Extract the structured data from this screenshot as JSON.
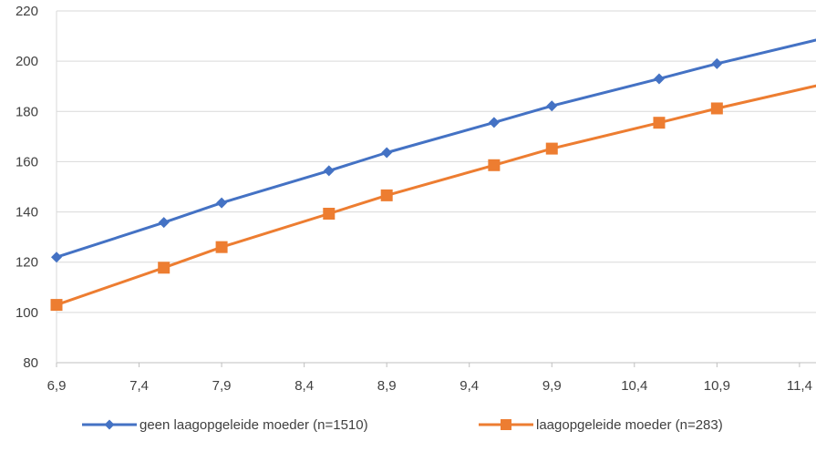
{
  "chart_data": {
    "type": "line",
    "title": "",
    "xlabel": "",
    "ylabel": "",
    "xlim": [
      6.9,
      11.5
    ],
    "ylim": [
      80,
      220
    ],
    "x_ticks": [
      6.9,
      7.4,
      7.9,
      8.4,
      8.9,
      9.4,
      9.9,
      10.4,
      10.9,
      11.4
    ],
    "x_tick_labels": [
      "6,9",
      "7,4",
      "7,9",
      "8,4",
      "8,9",
      "9,4",
      "9,9",
      "10,4",
      "10,9",
      "11,4"
    ],
    "y_ticks": [
      80,
      100,
      120,
      140,
      160,
      180,
      200,
      220
    ],
    "y_tick_labels": [
      "80",
      "100",
      "120",
      "140",
      "160",
      "180",
      "200",
      "220"
    ],
    "grid": "horizontal",
    "legend_position": "bottom",
    "series": [
      {
        "name": "geen laagopgeleide moeder (n=1510)",
        "color": "#4472C4",
        "marker": "diamond",
        "x": [
          6.9,
          7.55,
          7.9,
          8.55,
          8.9,
          9.55,
          9.9,
          10.55,
          10.9,
          11.5
        ],
        "y": [
          122,
          135.8,
          143.6,
          156.4,
          163.6,
          175.6,
          182.2,
          193,
          199,
          208.4
        ],
        "marker_count": 9
      },
      {
        "name": "laagopgeleide moeder (n=283)",
        "color": "#ED7D31",
        "marker": "square",
        "x": [
          6.9,
          7.55,
          7.9,
          8.55,
          8.9,
          9.55,
          9.9,
          10.55,
          10.9,
          11.5
        ],
        "y": [
          103,
          117.8,
          126,
          139.3,
          146.6,
          158.6,
          165.2,
          175.5,
          181.2,
          190.2
        ],
        "marker_count": 9
      }
    ]
  }
}
